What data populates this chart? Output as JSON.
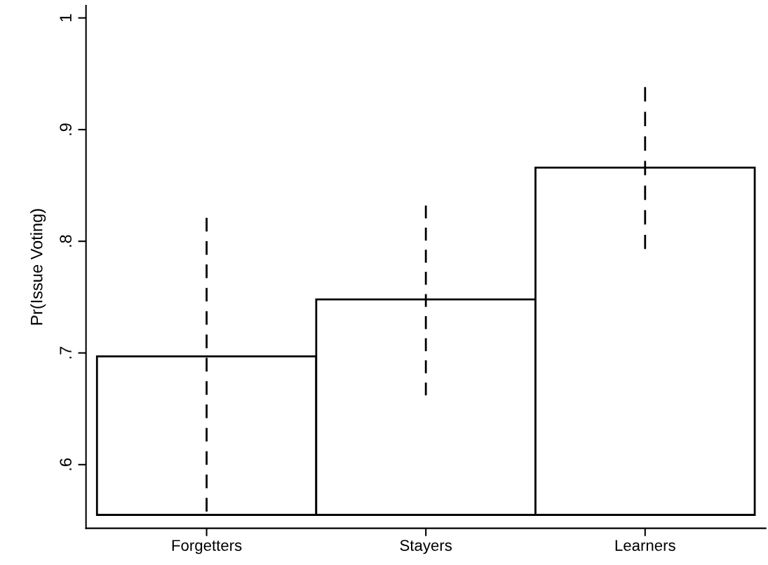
{
  "chart_data": {
    "type": "bar",
    "ylabel": "Pr(Issue Voting)",
    "categories": [
      "Forgetters",
      "Stayers",
      "Learners"
    ],
    "base": [
      0.555,
      0.555,
      0.555
    ],
    "values": [
      0.142,
      0.193,
      0.311
    ],
    "errors": [
      [
        0.558,
        0.821
      ],
      [
        0.662,
        0.832
      ],
      [
        0.793,
        0.938
      ]
    ],
    "color": "#ffffff",
    "ylim": [
      0.543,
      1.011
    ],
    "yticks": [
      {
        "value": 0.6,
        "label": ".6"
      },
      {
        "value": 0.7,
        "label": ".7"
      },
      {
        "value": 0.8,
        "label": ".8"
      },
      {
        "value": 0.9,
        "label": ".9"
      },
      1
    ],
    "line_style": "dashed",
    "grid": false,
    "legend": false
  }
}
